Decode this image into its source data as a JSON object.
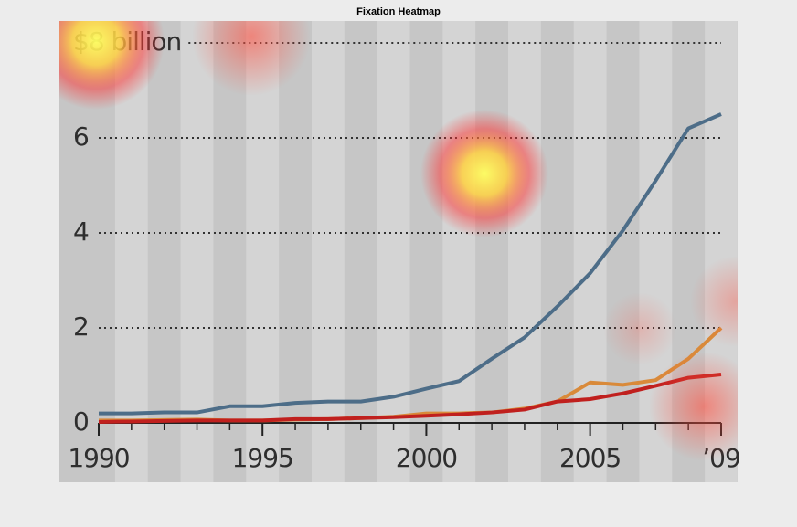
{
  "chart_data": {
    "type": "line",
    "title": "Fixation Heatmap",
    "x": [
      1990,
      1991,
      1992,
      1993,
      1994,
      1995,
      1996,
      1997,
      1998,
      1999,
      2000,
      2001,
      2002,
      2003,
      2004,
      2005,
      2006,
      2007,
      2008,
      2009
    ],
    "series": [
      {
        "color": "#4d6d88",
        "values": [
          0.2,
          0.2,
          0.22,
          0.22,
          0.35,
          0.35,
          0.42,
          0.45,
          0.45,
          0.55,
          0.72,
          0.88,
          1.35,
          1.8,
          2.45,
          3.15,
          4.05,
          5.1,
          6.2,
          6.5
        ]
      },
      {
        "color": "#d98a3a",
        "values": [
          0.05,
          0.05,
          0.06,
          0.07,
          0.05,
          0.05,
          0.07,
          0.08,
          0.1,
          0.13,
          0.2,
          0.2,
          0.22,
          0.3,
          0.45,
          0.85,
          0.8,
          0.9,
          1.35,
          2.0
        ]
      },
      {
        "color": "#c0201e",
        "values": [
          0.02,
          0.03,
          0.04,
          0.05,
          0.05,
          0.05,
          0.08,
          0.08,
          0.1,
          0.12,
          0.15,
          0.18,
          0.22,
          0.28,
          0.45,
          0.5,
          0.62,
          0.78,
          0.95,
          1.02
        ]
      }
    ],
    "xlim": [
      1990,
      2009
    ],
    "xticks": [
      1990,
      1995,
      2000,
      2005,
      {
        "value": 2009,
        "label": "’09"
      }
    ],
    "ylim": [
      0,
      8
    ],
    "yticks": [
      0,
      2,
      4,
      6,
      {
        "value": 8,
        "label": "$8 billion"
      }
    ],
    "grid": true
  }
}
